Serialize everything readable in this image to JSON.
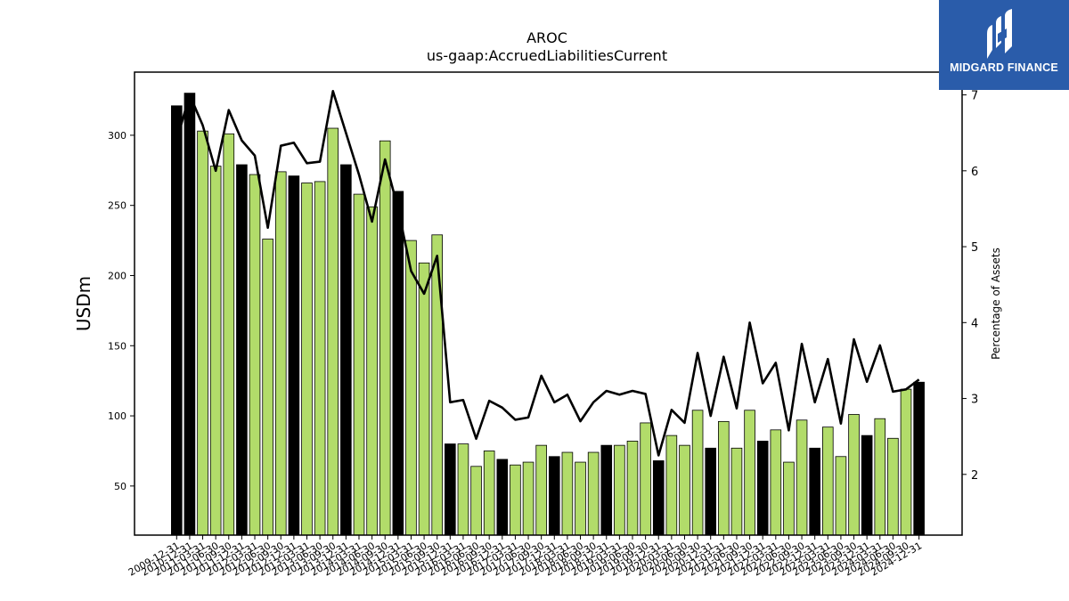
{
  "chart_data": {
    "type": "bar",
    "title": "AROC",
    "subtitle": "us-gaap:AccruedLiabilitiesCurrent",
    "ylabel": "USDm",
    "y2label": "Percentage of Assets",
    "ylim": [
      15,
      345
    ],
    "y2lim": [
      1.2,
      7.3
    ],
    "yticks": [
      50,
      100,
      150,
      200,
      250,
      300
    ],
    "y2ticks": [
      2,
      3,
      4,
      5,
      6,
      7
    ],
    "grid": false,
    "categories": [
      "2009-12-31",
      "2010-12-31",
      "2011-03-31",
      "2011-06-30",
      "2011-09-30",
      "2011-12-31",
      "2012-03-31",
      "2012-06-30",
      "2012-09-30",
      "2012-12-31",
      "2013-03-31",
      "2013-06-30",
      "2013-09-30",
      "2013-12-31",
      "2014-03-31",
      "2014-06-30",
      "2014-09-30",
      "2014-12-31",
      "2015-03-31",
      "2015-06-30",
      "2015-09-30",
      "2015-12-31",
      "2016-03-31",
      "2016-06-30",
      "2016-09-30",
      "2016-12-31",
      "2017-03-31",
      "2017-06-30",
      "2017-09-30",
      "2017-12-31",
      "2018-03-31",
      "2018-06-30",
      "2018-09-30",
      "2018-12-31",
      "2019-03-31",
      "2019-06-30",
      "2019-09-30",
      "2019-12-31",
      "2020-03-31",
      "2020-06-30",
      "2020-09-30",
      "2020-12-31",
      "2021-03-31",
      "2021-06-30",
      "2021-09-30",
      "2021-12-31",
      "2022-03-31",
      "2022-06-30",
      "2022-09-30",
      "2022-12-31",
      "2023-03-31",
      "2023-06-30",
      "2023-09-30",
      "2023-12-31",
      "2024-03-31",
      "2024-06-30",
      "2024-09-30",
      "2024-12-31"
    ],
    "tick_labels": [
      "2009-12-31",
      "2010-12-31",
      "2011-03-31",
      "2011-06-30",
      "2011-09-30",
      "2011-12-31",
      "2012-03-31",
      "2012-06-30",
      "2012-09-30",
      "2012-12-31",
      "2013-03-31",
      "2013-06-30",
      "2013-09-30",
      "2013-12-31",
      "2014-03-31",
      "2014-06-30",
      "2014-09-30",
      "2014-12-31",
      "2015-03-31",
      "2015-06-30",
      "2015-09-30",
      "2015-12-31",
      "2016-03-31",
      "2016-06-30",
      "2016-09-30",
      "2016-12-31",
      "2017-03-31",
      "2017-06-30",
      "2017-09-30",
      "2017-12-31",
      "2018-03-31",
      "2018-06-30",
      "2018-09-30",
      "2018-12-31",
      "2019-03-31",
      "2019-06-30",
      "2019-09-30",
      "2019-12-31",
      "2020-03-31",
      "2020-06-30",
      "2020-09-30",
      "2020-12-31",
      "2021-03-31",
      "2021-06-30",
      "2021-09-30",
      "2021-12-31",
      "2022-03-31",
      "2022-06-30",
      "2022-09-30",
      "2022-12-31",
      "2023-03-31",
      "2023-06-30",
      "2023-09-30",
      "2023-12-31",
      "2024-03-31",
      "2024-06-30",
      "2024-09-30",
      "2024-12-31"
    ],
    "bar_values": [
      321,
      330,
      303,
      278,
      301,
      279,
      272,
      226,
      274,
      271,
      266,
      267,
      305,
      279,
      258,
      249,
      296,
      260,
      225,
      209,
      229,
      80,
      80,
      64,
      75,
      69,
      65,
      67,
      79,
      71,
      74,
      67,
      74,
      79,
      79,
      82,
      95,
      68,
      86,
      79,
      104,
      77,
      96,
      77,
      104,
      82,
      90,
      67,
      97,
      77,
      92,
      71,
      101,
      86,
      98,
      84,
      119,
      124
    ],
    "bar_color_keys": [
      "k",
      "k",
      "g",
      "g",
      "g",
      "k",
      "g",
      "g",
      "g",
      "k",
      "g",
      "g",
      "g",
      "k",
      "g",
      "g",
      "g",
      "k",
      "g",
      "g",
      "g",
      "k",
      "g",
      "g",
      "g",
      "k",
      "g",
      "g",
      "g",
      "k",
      "g",
      "g",
      "g",
      "k",
      "g",
      "g",
      "g",
      "k",
      "g",
      "g",
      "g",
      "k",
      "g",
      "g",
      "g",
      "k",
      "g",
      "g",
      "g",
      "k",
      "g",
      "g",
      "g",
      "k",
      "g",
      "g",
      "g",
      "k"
    ],
    "line_values": [
      6.4,
      7.0,
      6.6,
      6.0,
      6.8,
      6.4,
      6.2,
      5.25,
      6.33,
      6.37,
      6.1,
      6.12,
      7.05,
      6.5,
      5.95,
      5.33,
      6.15,
      5.5,
      4.68,
      4.38,
      4.88,
      2.95,
      2.98,
      2.47,
      2.97,
      2.88,
      2.72,
      2.75,
      3.3,
      2.95,
      3.05,
      2.7,
      2.95,
      3.1,
      3.05,
      3.1,
      3.06,
      2.25,
      2.85,
      2.68,
      3.6,
      2.77,
      3.55,
      2.87,
      4.0,
      3.2,
      3.47,
      2.58,
      3.72,
      2.95,
      3.52,
      2.67,
      3.78,
      3.22,
      3.7,
      3.09,
      3.12,
      3.25
    ],
    "colors": {
      "k": "#000000",
      "g": "#b2dc6a",
      "line": "#000000"
    }
  },
  "logo": {
    "text": "MIDGARD FINANCE"
  }
}
